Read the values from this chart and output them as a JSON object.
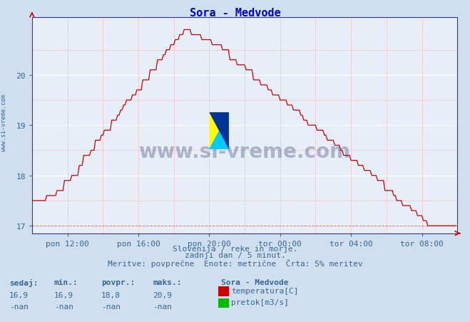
{
  "title": "Sora - Medvode",
  "title_color": "#0000cc",
  "bg_color": "#d0dff0",
  "plot_bg_color": "#e8eef8",
  "grid_color_white": "#ffffff",
  "grid_color_pink": "#ffb0b0",
  "line_color": "#cc0000",
  "axis_color": "#3333aa",
  "text_color": "#336699",
  "ylim": [
    16.85,
    21.15
  ],
  "yticks": [
    17,
    18,
    19,
    20
  ],
  "xlabel_ticks": [
    "pon 12:00",
    "pon 16:00",
    "pon 20:00",
    "tor 00:00",
    "tor 04:00",
    "tor 08:00"
  ],
  "footer_line1": "Slovenija / reke in morje.",
  "footer_line2": "zadnji dan / 5 minut.",
  "footer_line3": "Meritve: povprečne  Enote: metrične  Črta: 5% meritev",
  "stat_labels": [
    "sedaj:",
    "min.:",
    "povpr.:",
    "maks.:"
  ],
  "stat_values_temp": [
    "16,9",
    "16,9",
    "18,8",
    "20,9"
  ],
  "stat_values_flow": [
    "-nan",
    "-nan",
    "-nan",
    "-nan"
  ],
  "legend_station": "Sora - Medvode",
  "legend_temp_label": "temperatura[C]",
  "legend_flow_label": "pretok[m3/s]",
  "legend_temp_color": "#cc0000",
  "legend_flow_color": "#00bb00",
  "watermark_text": "www.si-vreme.com",
  "watermark_color": "#1a3060",
  "sidebar_text": "www.si-vreme.com",
  "n_points": 288,
  "x_tick_positions": [
    24,
    72,
    120,
    168,
    216,
    264
  ]
}
